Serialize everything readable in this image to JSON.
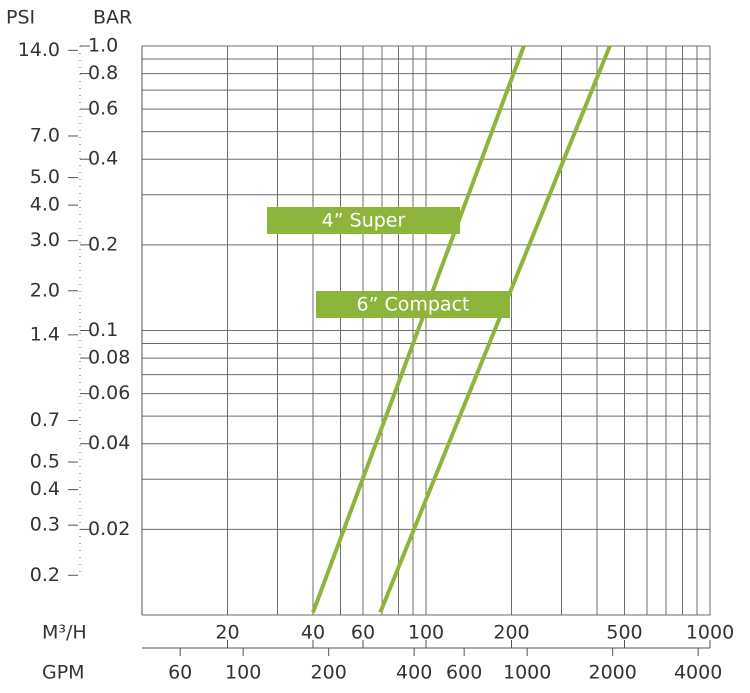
{
  "chart_data": {
    "type": "line",
    "y_label": "BAR",
    "y2_label": "PSI",
    "x_label": "M³/H",
    "x2_label": "GPM",
    "log_x": true,
    "log_y": true,
    "grid": true,
    "xlim": [
      10,
      1000
    ],
    "xticks": [
      20,
      40,
      60,
      100,
      200,
      500,
      1000
    ],
    "x2lim": [
      44.03,
      4403
    ],
    "x2ticks": [
      60,
      100,
      200,
      400,
      600,
      1000,
      2000,
      4000
    ],
    "ylim": [
      0.01,
      1
    ],
    "yticks": [
      {
        "value": 1,
        "label": "1.0"
      },
      0.8,
      0.6,
      0.4,
      0.2,
      0.1,
      0.08,
      0.06,
      0.04,
      0.02
    ],
    "y2lim": [
      0.145,
      14.5
    ],
    "y2ticks": [
      {
        "value": 14,
        "label": "14.0"
      },
      {
        "value": 7,
        "label": "7.0"
      },
      {
        "value": 5,
        "label": "5.0"
      },
      {
        "value": 4,
        "label": "4.0"
      },
      {
        "value": 3,
        "label": "3.0"
      },
      {
        "value": 2,
        "label": "2.0"
      },
      1.4,
      0.7,
      0.5,
      0.4,
      0.3,
      0.2
    ],
    "series": [
      {
        "name": "4” Super",
        "color": "#8db53c",
        "x": [
          40,
          221
        ],
        "values": [
          0.0102,
          1
        ]
      },
      {
        "name": "6” Compact",
        "color": "#8db53c",
        "x": [
          69,
          444
        ],
        "values": [
          0.0102,
          1
        ]
      }
    ]
  }
}
